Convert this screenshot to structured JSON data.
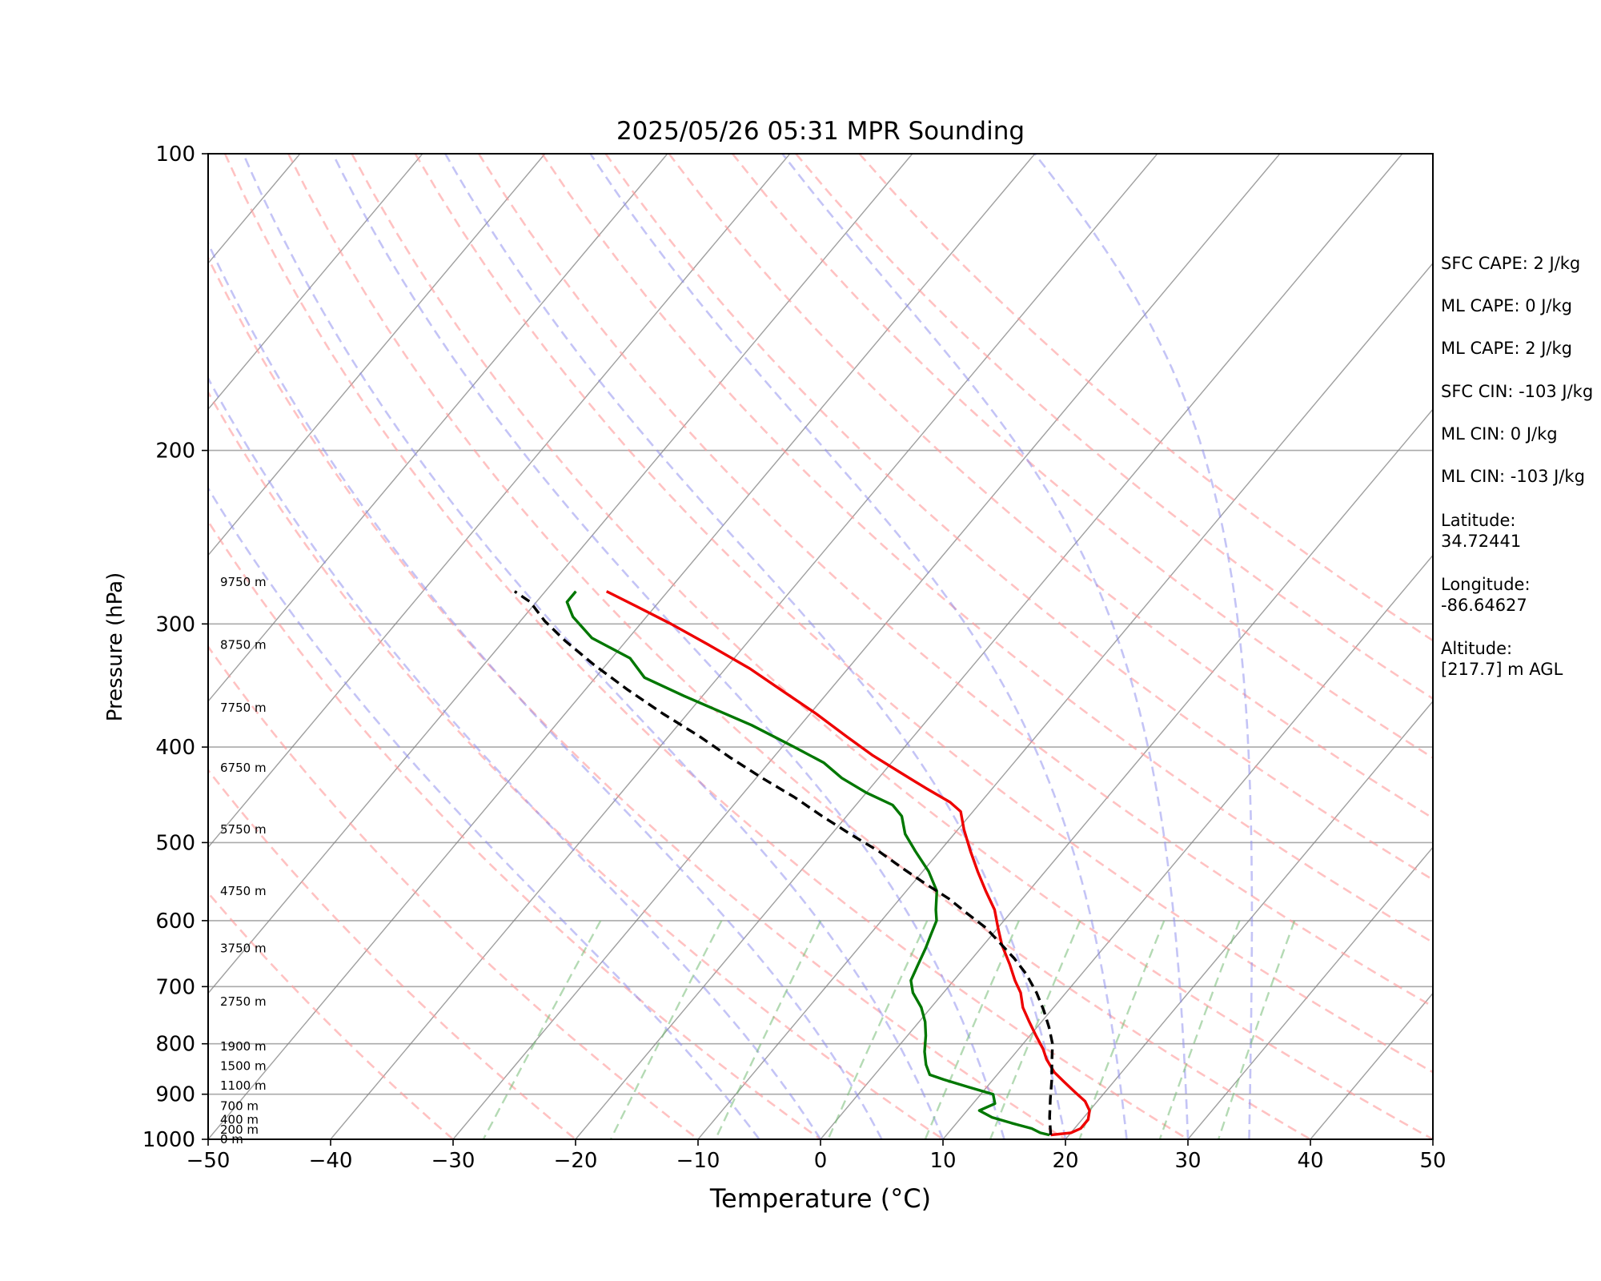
{
  "chart_data": {
    "type": "line",
    "title": "2025/05/26 05:31 MPR Sounding",
    "xlabel": "Temperature (°C)",
    "ylabel": "Pressure (hPa)",
    "xlim": [
      -50,
      50
    ],
    "ylim": [
      1000,
      100
    ],
    "y_scale": "log",
    "x_ticks": [
      "−50",
      "−40",
      "−30",
      "−20",
      "−10",
      "0",
      "10",
      "20",
      "30",
      "40",
      "50"
    ],
    "x_tick_values": [
      -50,
      -40,
      -30,
      -20,
      -10,
      0,
      10,
      20,
      30,
      40,
      50
    ],
    "y_ticks": [
      "100",
      "200",
      "300",
      "400",
      "500",
      "600",
      "700",
      "800",
      "900",
      "1000"
    ],
    "y_tick_values": [
      100,
      200,
      300,
      400,
      500,
      600,
      700,
      800,
      900,
      1000
    ],
    "grid": "horizontal at pressure ticks",
    "skew_per_decade": 67.5,
    "series": [
      {
        "key": "temperature",
        "color": "#ee0000",
        "style": "solid",
        "points": [
          [
            18.5,
            990
          ],
          [
            20.0,
            985
          ],
          [
            20.5,
            975
          ],
          [
            20.5,
            955
          ],
          [
            20.0,
            935
          ],
          [
            19.0,
            915
          ],
          [
            17.5,
            895
          ],
          [
            16.0,
            875
          ],
          [
            14.5,
            855
          ],
          [
            13.0,
            830
          ],
          [
            12.0,
            810
          ],
          [
            10.5,
            785
          ],
          [
            9.0,
            760
          ],
          [
            7.5,
            735
          ],
          [
            6.3,
            710
          ],
          [
            5.0,
            690
          ],
          [
            3.5,
            665
          ],
          [
            1.5,
            635
          ],
          [
            0.0,
            610
          ],
          [
            -1.5,
            585
          ],
          [
            -3.5,
            560
          ],
          [
            -5.5,
            535
          ],
          [
            -7.5,
            510
          ],
          [
            -9.5,
            485
          ],
          [
            -11.0,
            465
          ],
          [
            -12.5,
            455
          ],
          [
            -15.5,
            440
          ],
          [
            -18.5,
            425
          ],
          [
            -22.0,
            408
          ],
          [
            -25.5,
            390
          ],
          [
            -29.5,
            370
          ],
          [
            -34.0,
            350
          ],
          [
            -38.0,
            333
          ],
          [
            -43.0,
            315
          ],
          [
            -47.5,
            300
          ],
          [
            -51.5,
            288
          ],
          [
            -55.0,
            278
          ]
        ]
      },
      {
        "key": "dewpoint",
        "color": "#007700",
        "style": "solid",
        "points": [
          [
            18.4,
            990
          ],
          [
            17.5,
            985
          ],
          [
            16.5,
            975
          ],
          [
            14.5,
            963
          ],
          [
            12.5,
            950
          ],
          [
            11.0,
            935
          ],
          [
            11.8,
            920
          ],
          [
            11.0,
            900
          ],
          [
            8.5,
            885
          ],
          [
            6.0,
            870
          ],
          [
            4.5,
            860
          ],
          [
            3.5,
            840
          ],
          [
            2.5,
            815
          ],
          [
            1.5,
            785
          ],
          [
            0.5,
            760
          ],
          [
            -0.8,
            735
          ],
          [
            -2.5,
            710
          ],
          [
            -3.5,
            690
          ],
          [
            -4.0,
            665
          ],
          [
            -4.5,
            640
          ],
          [
            -5.0,
            620
          ],
          [
            -5.5,
            600
          ],
          [
            -6.3,
            585
          ],
          [
            -7.5,
            560
          ],
          [
            -9.5,
            535
          ],
          [
            -12.0,
            510
          ],
          [
            -14.0,
            490
          ],
          [
            -15.5,
            470
          ],
          [
            -17.0,
            458
          ],
          [
            -20.0,
            445
          ],
          [
            -23.0,
            430
          ],
          [
            -25.5,
            415
          ],
          [
            -29.0,
            400
          ],
          [
            -34.0,
            380
          ],
          [
            -41.5,
            355
          ],
          [
            -46.0,
            340
          ],
          [
            -48.5,
            325
          ],
          [
            -53.0,
            310
          ],
          [
            -56.0,
            295
          ],
          [
            -57.5,
            285
          ],
          [
            -57.5,
            278
          ]
        ]
      },
      {
        "key": "parcel",
        "color": "#000000",
        "style": "dashed",
        "points": [
          [
            18.5,
            990
          ],
          [
            17.2,
            950
          ],
          [
            16.0,
            910
          ],
          [
            14.8,
            870
          ],
          [
            13.6,
            835
          ],
          [
            12.4,
            800
          ],
          [
            11.0,
            770
          ],
          [
            9.4,
            740
          ],
          [
            7.6,
            710
          ],
          [
            5.5,
            680
          ],
          [
            3.4,
            655
          ],
          [
            1.0,
            630
          ],
          [
            -1.0,
            610
          ],
          [
            -3.5,
            590
          ],
          [
            -6.0,
            570
          ],
          [
            -9.0,
            550
          ],
          [
            -12.0,
            530
          ],
          [
            -15.0,
            510
          ],
          [
            -18.5,
            490
          ],
          [
            -22.0,
            470
          ],
          [
            -25.5,
            450
          ],
          [
            -29.5,
            430
          ],
          [
            -33.5,
            410
          ],
          [
            -37.5,
            390
          ],
          [
            -42.0,
            370
          ],
          [
            -46.5,
            350
          ],
          [
            -51.0,
            330
          ],
          [
            -55.0,
            312
          ],
          [
            -58.0,
            298
          ],
          [
            -60.5,
            285
          ],
          [
            -62.5,
            278
          ]
        ]
      }
    ],
    "height_labels": [
      {
        "p": 1000,
        "text": "0 m"
      },
      {
        "p": 978,
        "text": "200 m"
      },
      {
        "p": 955,
        "text": "400 m"
      },
      {
        "p": 925,
        "text": "700 m"
      },
      {
        "p": 882,
        "text": "1100 m"
      },
      {
        "p": 843,
        "text": "1500 m"
      },
      {
        "p": 805,
        "text": "1900 m"
      },
      {
        "p": 725,
        "text": "2750 m"
      },
      {
        "p": 640,
        "text": "3750 m"
      },
      {
        "p": 560,
        "text": "4750 m"
      },
      {
        "p": 485,
        "text": "5750 m"
      },
      {
        "p": 420,
        "text": "6750 m"
      },
      {
        "p": 365,
        "text": "7750 m"
      },
      {
        "p": 315,
        "text": "8750 m"
      },
      {
        "p": 272,
        "text": "9750 m"
      }
    ],
    "dry_adiabats_theta_c": [
      -30,
      -20,
      -10,
      0,
      10,
      20,
      30,
      40,
      50,
      60,
      70,
      80,
      90,
      100,
      110,
      120,
      130
    ],
    "moist_adiabats_c": [
      -5,
      0,
      5,
      10,
      15,
      20,
      25,
      30,
      35
    ],
    "mixing_ratio_lines_gkg": [
      0.4,
      1,
      2,
      4,
      7,
      10,
      16,
      24,
      32
    ],
    "colors": {
      "temperature": "#ee0000",
      "dewpoint": "#007700",
      "parcel": "#000000",
      "dry_adiabat": "#ff9999",
      "moist_adiabat": "#8a8aee",
      "mixing_ratio": "#77bb77",
      "isotherm": "#7f7f7f",
      "gridline": "#aaaaaa"
    }
  },
  "info_panel": {
    "sfc_cape": "SFC CAPE: 2 J/kg",
    "ml_cape_1": "ML CAPE: 0 J/kg",
    "ml_cape_2": "ML CAPE: 2 J/kg",
    "sfc_cin": "SFC CIN: -103 J/kg",
    "ml_cin_1": "ML CIN: 0 J/kg",
    "ml_cin_2": "ML CIN: -103 J/kg",
    "latitude": "Latitude:\n34.72441",
    "longitude": "Longitude:\n-86.64627",
    "altitude": "Altitude:\n[217.7] m AGL"
  }
}
